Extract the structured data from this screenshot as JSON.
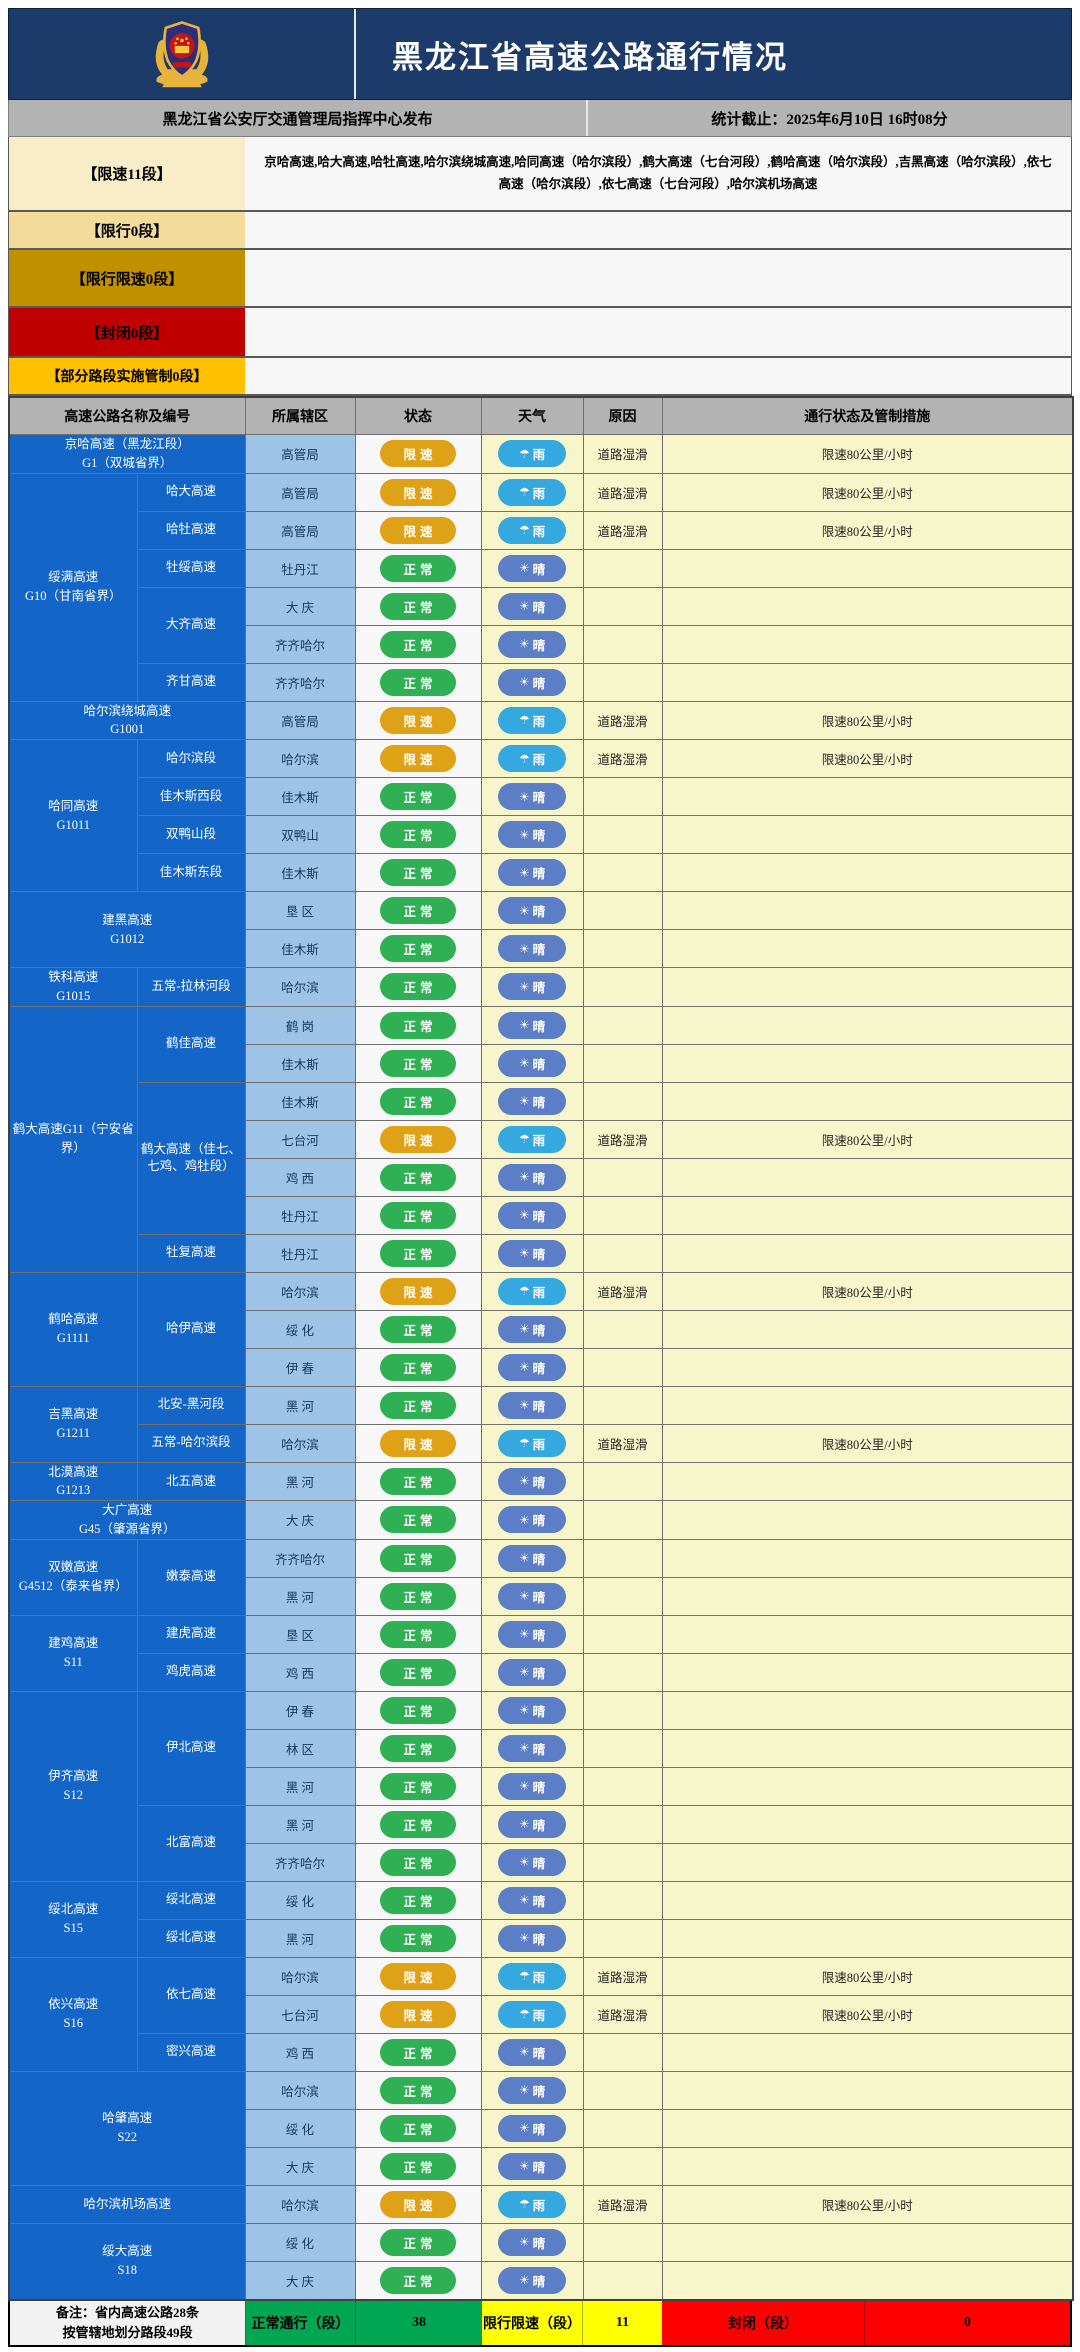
{
  "header": {
    "title": "黑龙江省高速公路通行情况",
    "publisher": "黑龙江省公安厅交通管理局指挥中心发布",
    "stats_cutoff": "统计截止：2025年6月10日  16时08分"
  },
  "summary_rows": [
    {
      "label": "【限速11段】",
      "content": "京哈高速,哈大高速,哈牡高速,哈尔滨绕城高速,哈同高速（哈尔滨段）,鹤大高速（七台河段）,鹤哈高速（哈尔滨段）,吉黑高速（哈尔滨段）,依七高速（哈尔滨段）,依七高速（七台河段）,哈尔滨机场高速"
    },
    {
      "label": "【限行0段】",
      "content": ""
    },
    {
      "label": "【限行限速0段】",
      "content": ""
    },
    {
      "label": "【封闭0段】",
      "content": ""
    },
    {
      "label": "【部分路段实施管制0段】",
      "content": ""
    }
  ],
  "table": {
    "columns": [
      "高速公路名称及编号",
      "所属辖区",
      "状态",
      "天气",
      "原因",
      "通行状态及管制措施"
    ],
    "rows": [
      {
        "g": {
          "t": "京哈高速（黑龙江段）\nG1（双城省界）",
          "rs": 1,
          "cs": 2
        },
        "d": "高管局",
        "st": "limited",
        "w": "rain",
        "r": "道路湿滑",
        "m": "限速80公里/小时"
      },
      {
        "g": {
          "t": "绥满高速\nG10（甘南省界）",
          "rs": 6
        },
        "s": {
          "t": "哈大高速",
          "rs": 1
        },
        "d": "高管局",
        "st": "limited",
        "w": "rain",
        "r": "道路湿滑",
        "m": "限速80公里/小时"
      },
      {
        "s": {
          "t": "哈牡高速",
          "rs": 1
        },
        "d": "高管局",
        "st": "limited",
        "w": "rain",
        "r": "道路湿滑",
        "m": "限速80公里/小时"
      },
      {
        "s": {
          "t": "牡绥高速",
          "rs": 1
        },
        "d": "牡丹江",
        "st": "normal",
        "w": "sunny",
        "r": "",
        "m": ""
      },
      {
        "s": {
          "t": "大齐高速",
          "rs": 2
        },
        "d": "大 庆",
        "st": "normal",
        "w": "sunny",
        "r": "",
        "m": ""
      },
      {
        "d": "齐齐哈尔",
        "st": "normal",
        "w": "sunny",
        "r": "",
        "m": ""
      },
      {
        "s": {
          "t": "齐甘高速",
          "rs": 1
        },
        "d": "齐齐哈尔",
        "st": "normal",
        "w": "sunny",
        "r": "",
        "m": ""
      },
      {
        "g": {
          "t": "哈尔滨绕城高速\nG1001",
          "rs": 1,
          "cs": 2
        },
        "d": "高管局",
        "st": "limited",
        "w": "rain",
        "r": "道路湿滑",
        "m": "限速80公里/小时"
      },
      {
        "g": {
          "t": "哈同高速\nG1011",
          "rs": 4
        },
        "s": {
          "t": "哈尔滨段",
          "rs": 1
        },
        "d": "哈尔滨",
        "st": "limited",
        "w": "rain",
        "r": "道路湿滑",
        "m": "限速80公里/小时"
      },
      {
        "s": {
          "t": "佳木斯西段",
          "rs": 1
        },
        "d": "佳木斯",
        "st": "normal",
        "w": "sunny",
        "r": "",
        "m": ""
      },
      {
        "s": {
          "t": "双鸭山段",
          "rs": 1
        },
        "d": "双鸭山",
        "st": "normal",
        "w": "sunny",
        "r": "",
        "m": ""
      },
      {
        "s": {
          "t": "佳木斯东段",
          "rs": 1
        },
        "d": "佳木斯",
        "st": "normal",
        "w": "sunny",
        "r": "",
        "m": ""
      },
      {
        "g": {
          "t": "建黑高速\nG1012",
          "rs": 2,
          "cs": 2
        },
        "d": "垦 区",
        "st": "normal",
        "w": "sunny",
        "r": "",
        "m": ""
      },
      {
        "d": "佳木斯",
        "st": "normal",
        "w": "sunny",
        "r": "",
        "m": ""
      },
      {
        "g": {
          "t": "铁科高速\nG1015",
          "rs": 1
        },
        "s": {
          "t": "五常-拉林河段",
          "rs": 1
        },
        "d": "哈尔滨",
        "st": "normal",
        "w": "sunny",
        "r": "",
        "m": ""
      },
      {
        "g": {
          "t": "鹤大高速G11（宁安省界）",
          "rs": 7
        },
        "s": {
          "t": "鹤佳高速",
          "rs": 2
        },
        "d": "鹤 岗",
        "st": "normal",
        "w": "sunny",
        "r": "",
        "m": ""
      },
      {
        "d": "佳木斯",
        "st": "normal",
        "w": "sunny",
        "r": "",
        "m": ""
      },
      {
        "s": {
          "t": "鹤大高速（佳七、七鸡、鸡牡段）",
          "rs": 4
        },
        "d": "佳木斯",
        "st": "normal",
        "w": "sunny",
        "r": "",
        "m": ""
      },
      {
        "d": "七台河",
        "st": "limited",
        "w": "rain",
        "r": "道路湿滑",
        "m": "限速80公里/小时"
      },
      {
        "d": "鸡 西",
        "st": "normal",
        "w": "sunny",
        "r": "",
        "m": ""
      },
      {
        "d": "牡丹江",
        "st": "normal",
        "w": "sunny",
        "r": "",
        "m": ""
      },
      {
        "s": {
          "t": "牡复高速",
          "rs": 1
        },
        "d": "牡丹江",
        "st": "normal",
        "w": "sunny",
        "r": "",
        "m": ""
      },
      {
        "g": {
          "t": "鹤哈高速\nG1111",
          "rs": 3
        },
        "s": {
          "t": "哈伊高速",
          "rs": 3
        },
        "d": "哈尔滨",
        "st": "limited",
        "w": "rain",
        "r": "道路湿滑",
        "m": "限速80公里/小时"
      },
      {
        "d": "绥 化",
        "st": "normal",
        "w": "sunny",
        "r": "",
        "m": ""
      },
      {
        "d": "伊 春",
        "st": "normal",
        "w": "sunny",
        "r": "",
        "m": ""
      },
      {
        "g": {
          "t": "吉黑高速\nG1211",
          "rs": 2
        },
        "s": {
          "t": "北安-黑河段",
          "rs": 1
        },
        "d": "黑 河",
        "st": "normal",
        "w": "sunny",
        "r": "",
        "m": ""
      },
      {
        "s": {
          "t": "五常-哈尔滨段",
          "rs": 1
        },
        "d": "哈尔滨",
        "st": "limited",
        "w": "rain",
        "r": "道路湿滑",
        "m": "限速80公里/小时"
      },
      {
        "g": {
          "t": "北漠高速\nG1213",
          "rs": 1
        },
        "s": {
          "t": "北五高速",
          "rs": 1
        },
        "d": "黑 河",
        "st": "normal",
        "w": "sunny",
        "r": "",
        "m": ""
      },
      {
        "g": {
          "t": "大广高速\nG45（肇源省界）",
          "rs": 1,
          "cs": 2
        },
        "d": "大 庆",
        "st": "normal",
        "w": "sunny",
        "r": "",
        "m": ""
      },
      {
        "g": {
          "t": "双嫩高速\nG4512（泰来省界）",
          "rs": 2
        },
        "s": {
          "t": "嫩泰高速",
          "rs": 2
        },
        "d": "齐齐哈尔",
        "st": "normal",
        "w": "sunny",
        "r": "",
        "m": ""
      },
      {
        "d": "黑 河",
        "st": "normal",
        "w": "sunny",
        "r": "",
        "m": ""
      },
      {
        "g": {
          "t": "建鸡高速\nS11",
          "rs": 2
        },
        "s": {
          "t": "建虎高速",
          "rs": 1
        },
        "d": "垦 区",
        "st": "normal",
        "w": "sunny",
        "r": "",
        "m": ""
      },
      {
        "s": {
          "t": "鸡虎高速",
          "rs": 1
        },
        "d": "鸡 西",
        "st": "normal",
        "w": "sunny",
        "r": "",
        "m": ""
      },
      {
        "g": {
          "t": "伊齐高速\nS12",
          "rs": 5
        },
        "s": {
          "t": "伊北高速",
          "rs": 3
        },
        "d": "伊 春",
        "st": "normal",
        "w": "sunny",
        "r": "",
        "m": ""
      },
      {
        "d": "林 区",
        "st": "normal",
        "w": "sunny",
        "r": "",
        "m": ""
      },
      {
        "d": "黑 河",
        "st": "normal",
        "w": "sunny",
        "r": "",
        "m": ""
      },
      {
        "s": {
          "t": "北富高速",
          "rs": 2
        },
        "d": "黑 河",
        "st": "normal",
        "w": "sunny",
        "r": "",
        "m": ""
      },
      {
        "d": "齐齐哈尔",
        "st": "normal",
        "w": "sunny",
        "r": "",
        "m": ""
      },
      {
        "g": {
          "t": "绥北高速\nS15",
          "rs": 2
        },
        "s": {
          "t": "绥北高速",
          "rs": 1
        },
        "d": "绥 化",
        "st": "normal",
        "w": "sunny",
        "r": "",
        "m": ""
      },
      {
        "s": {
          "t": "绥北高速",
          "rs": 1
        },
        "d": "黑 河",
        "st": "normal",
        "w": "sunny",
        "r": "",
        "m": ""
      },
      {
        "g": {
          "t": "依兴高速\nS16",
          "rs": 3
        },
        "s": {
          "t": "依七高速",
          "rs": 2
        },
        "d": "哈尔滨",
        "st": "limited",
        "w": "rain",
        "r": "道路湿滑",
        "m": "限速80公里/小时"
      },
      {
        "d": "七台河",
        "st": "limited",
        "w": "rain",
        "r": "道路湿滑",
        "m": "限速80公里/小时"
      },
      {
        "s": {
          "t": "密兴高速",
          "rs": 1
        },
        "d": "鸡 西",
        "st": "normal",
        "w": "sunny",
        "r": "",
        "m": ""
      },
      {
        "g": {
          "t": "哈肇高速\nS22",
          "rs": 3,
          "cs": 2
        },
        "d": "哈尔滨",
        "st": "normal",
        "w": "sunny",
        "r": "",
        "m": ""
      },
      {
        "d": "绥 化",
        "st": "normal",
        "w": "sunny",
        "r": "",
        "m": ""
      },
      {
        "d": "大 庆",
        "st": "normal",
        "w": "sunny",
        "r": "",
        "m": ""
      },
      {
        "g": {
          "t": "哈尔滨机场高速",
          "rs": 1,
          "cs": 2
        },
        "d": "哈尔滨",
        "st": "limited",
        "w": "rain",
        "r": "道路湿滑",
        "m": "限速80公里/小时"
      },
      {
        "g": {
          "t": "绥大高速\nS18",
          "rs": 2,
          "cs": 2
        },
        "d": "绥 化",
        "st": "normal",
        "w": "sunny",
        "r": "",
        "m": ""
      },
      {
        "d": "大 庆",
        "st": "normal",
        "w": "sunny",
        "r": "",
        "m": ""
      }
    ]
  },
  "badges": {
    "normal": "正常",
    "limited": "限速",
    "rain": "雨",
    "sunny": "晴",
    "rain_icon": "☂",
    "sun_icon": "☀"
  },
  "footer": {
    "note": "备注：省内高速公路28条\n按管辖地划分路段49段",
    "normal_label": "正常通行（段）",
    "normal_count": "38",
    "limited_label": "限行限速（段）",
    "limited_count": "11",
    "closed_label": "封闭（段）",
    "closed_count": "0"
  },
  "colors": {
    "header_navy": "#1c3a6a",
    "group_blue": "#1366c7",
    "district_blue": "#9dc3e6",
    "col_yellow": "#f6f6ca",
    "status_normal": "#2fb054",
    "status_limited": "#dfa216",
    "weather_rain": "#35a8e0",
    "weather_sun": "#5b7ec7",
    "summary_limit_bg": "#f8edc8",
    "summary_restrict_bg": "#f3dc9b",
    "summary_reslim_bg": "#bf9000",
    "summary_closed_bg": "#c00000",
    "summary_partial_bg": "#ffc000",
    "footer_green": "#00a651",
    "footer_yellow": "#ffff00",
    "footer_red": "#ff0000"
  }
}
